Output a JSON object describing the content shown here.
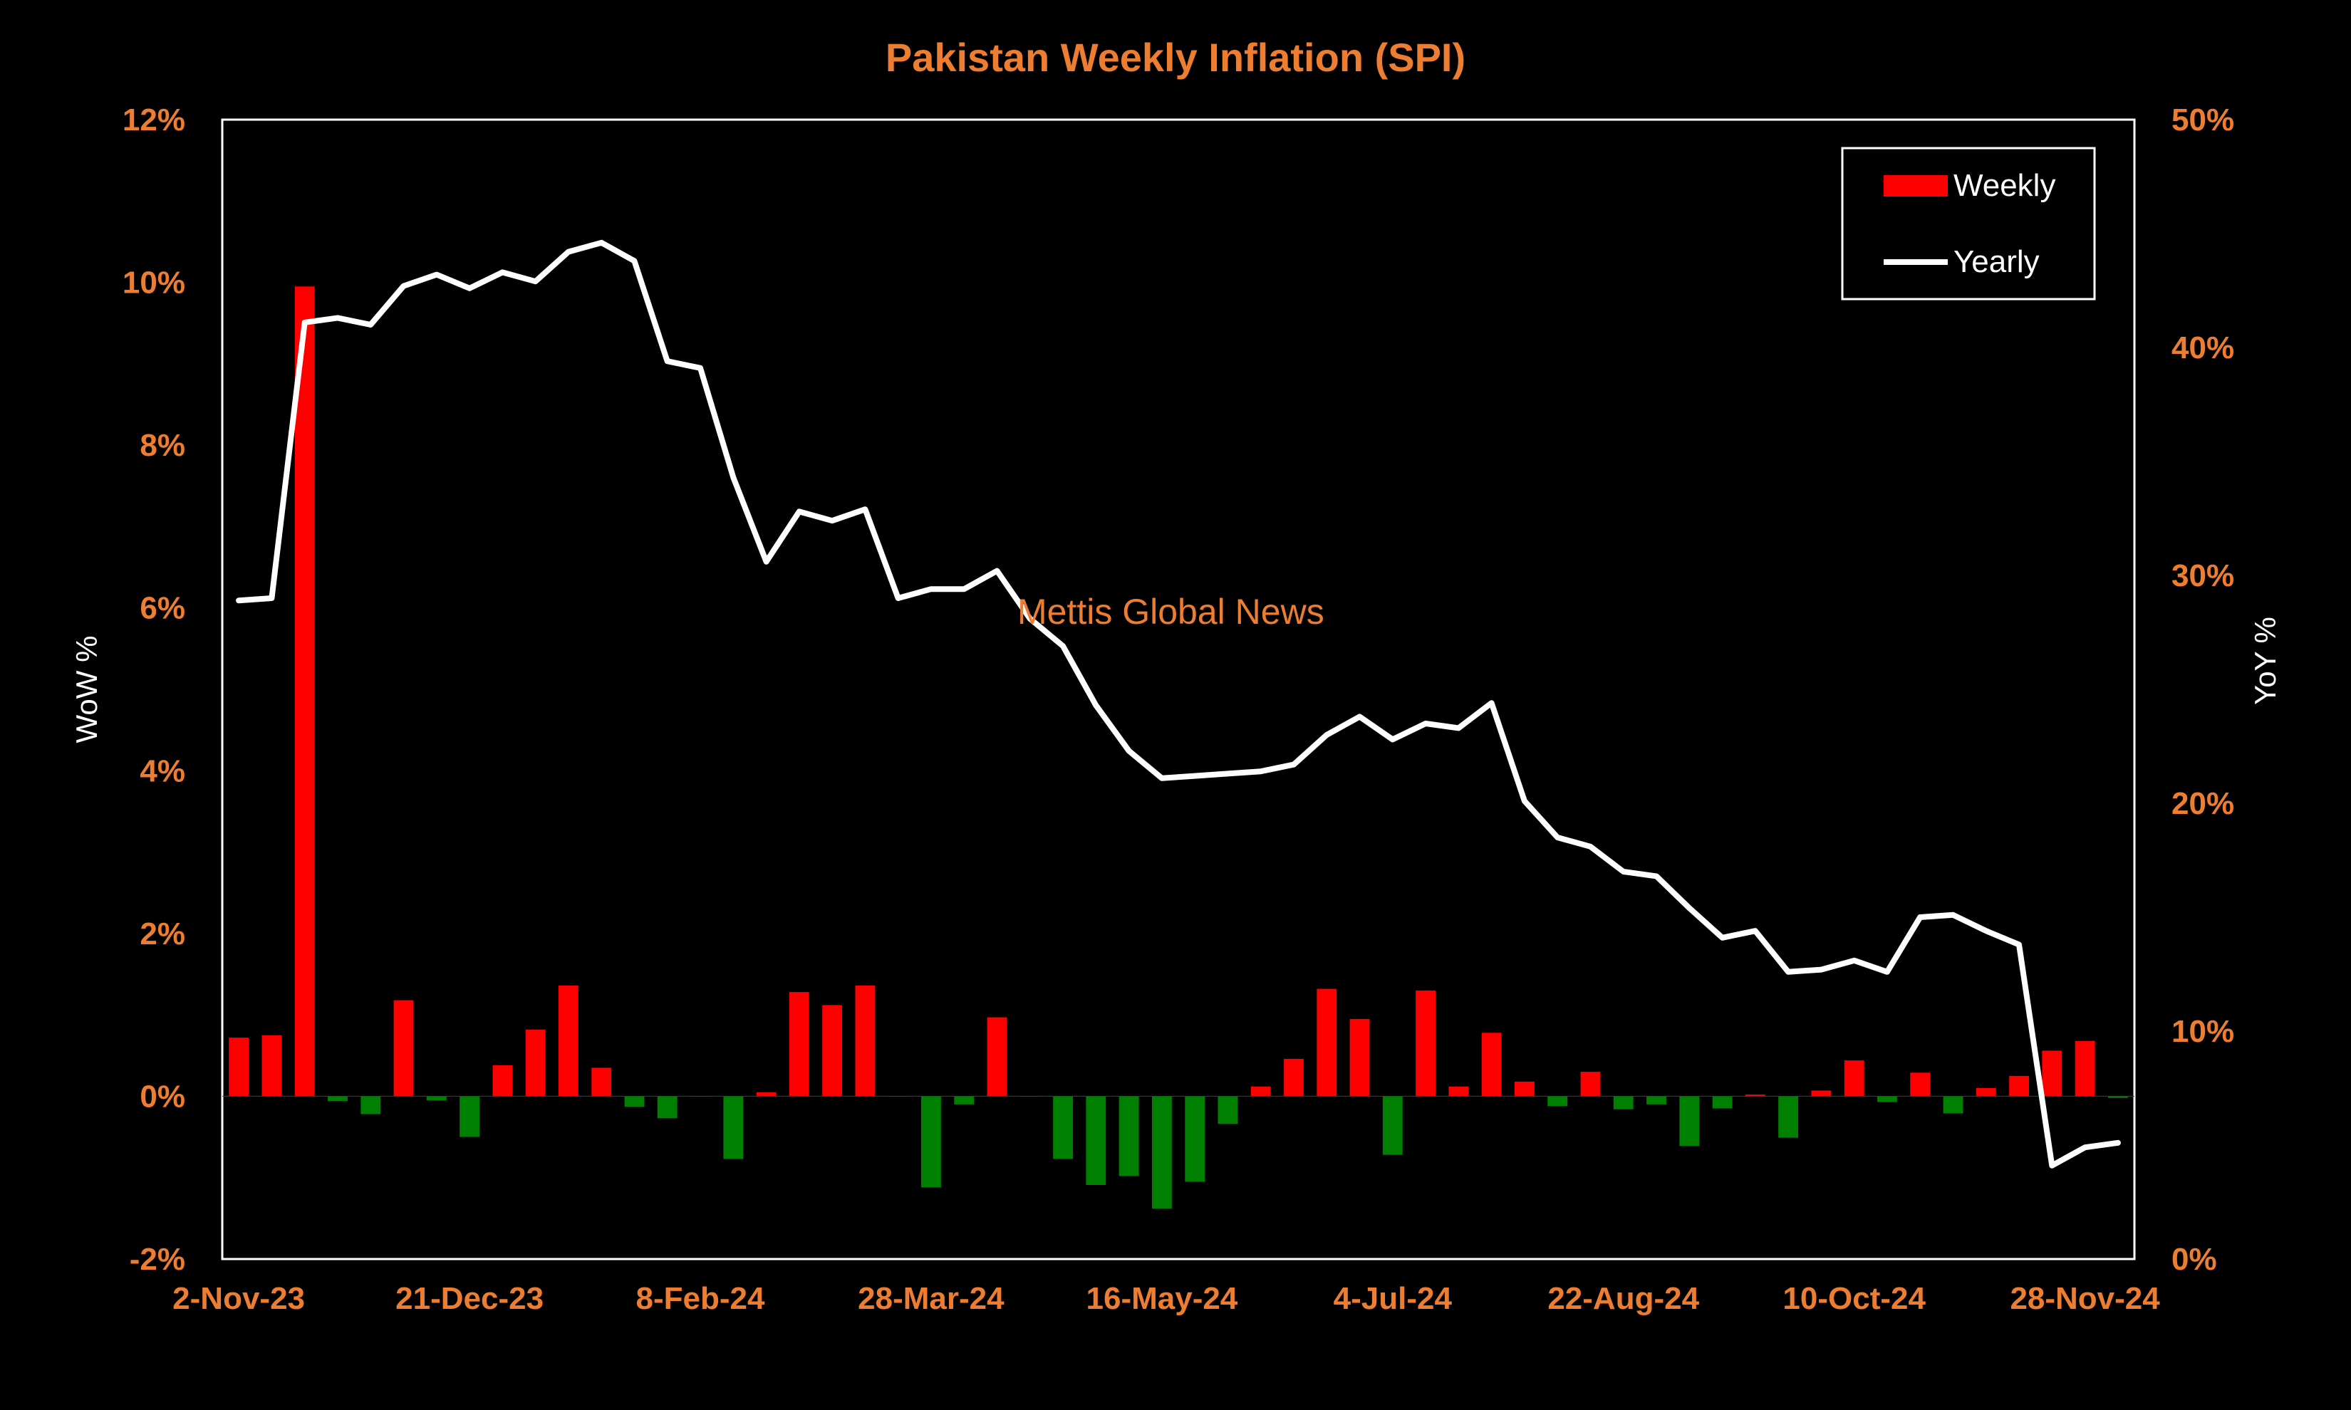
{
  "colors": {
    "background": "#000000",
    "accent": "#ED7D31",
    "weekly_positive": "#FF0000",
    "weekly_negative": "#008000",
    "yearly_line": "#FFFFFF",
    "frame": "#FFFFFF"
  },
  "watermark": "Mettis Global News",
  "chart_data": {
    "type": "bar",
    "title": "Pakistan Weekly Inflation (SPI)",
    "ylabel": "WoW %",
    "y2label": "YoY %",
    "ylim": [
      -2,
      12
    ],
    "y2lim": [
      0,
      50
    ],
    "yticks": [
      "-2%",
      "0%",
      "2%",
      "4%",
      "6%",
      "8%",
      "10%",
      "12%"
    ],
    "y2ticks": [
      "0%",
      "10%",
      "20%",
      "30%",
      "40%",
      "50%"
    ],
    "xtick_labels": [
      {
        "index": 0,
        "label": "2-Nov-23"
      },
      {
        "index": 7,
        "label": "21-Dec-23"
      },
      {
        "index": 14,
        "label": "8-Feb-24"
      },
      {
        "index": 21,
        "label": "28-Mar-24"
      },
      {
        "index": 28,
        "label": "16-May-24"
      },
      {
        "index": 35,
        "label": "4-Jul-24"
      },
      {
        "index": 42,
        "label": "22-Aug-24"
      },
      {
        "index": 49,
        "label": "10-Oct-24"
      },
      {
        "index": 56,
        "label": "28-Nov-24"
      }
    ],
    "grid": false,
    "legend_position": "top-right",
    "series": [
      {
        "name": "Weekly",
        "type": "bar",
        "axis": "left",
        "values": [
          0.72,
          0.75,
          9.95,
          -0.06,
          -0.22,
          1.18,
          -0.05,
          -0.5,
          0.38,
          0.82,
          1.36,
          0.35,
          -0.13,
          -0.27,
          0.0,
          -0.77,
          0.05,
          1.28,
          1.12,
          1.36,
          0.0,
          -1.12,
          -0.1,
          0.97,
          0.0,
          -0.77,
          -1.09,
          -0.98,
          -1.38,
          -1.05,
          -0.34,
          0.12,
          0.46,
          1.32,
          0.95,
          -0.72,
          1.3,
          0.12,
          0.78,
          0.18,
          -0.12,
          0.3,
          -0.16,
          -0.1,
          -0.61,
          -0.15,
          0.02,
          -0.51,
          0.07,
          0.44,
          -0.07,
          0.29,
          -0.21,
          0.1,
          0.25,
          0.56,
          0.68,
          -0.02
        ]
      },
      {
        "name": "Yearly",
        "type": "line",
        "axis": "right",
        "values": [
          28.9,
          29.0,
          41.1,
          41.3,
          41.0,
          42.7,
          43.2,
          42.6,
          43.3,
          42.9,
          44.2,
          44.6,
          43.8,
          39.4,
          39.1,
          34.3,
          30.6,
          32.8,
          32.4,
          32.9,
          29.0,
          29.4,
          29.4,
          30.2,
          28.1,
          26.9,
          24.3,
          22.3,
          21.1,
          21.2,
          21.3,
          21.4,
          21.7,
          23.0,
          23.8,
          22.8,
          23.5,
          23.3,
          24.4,
          20.1,
          18.5,
          18.1,
          17.0,
          16.8,
          15.4,
          14.1,
          14.4,
          12.6,
          12.7,
          13.1,
          12.6,
          15.0,
          15.1,
          14.4,
          13.8,
          4.1,
          4.9,
          5.1
        ]
      }
    ]
  }
}
